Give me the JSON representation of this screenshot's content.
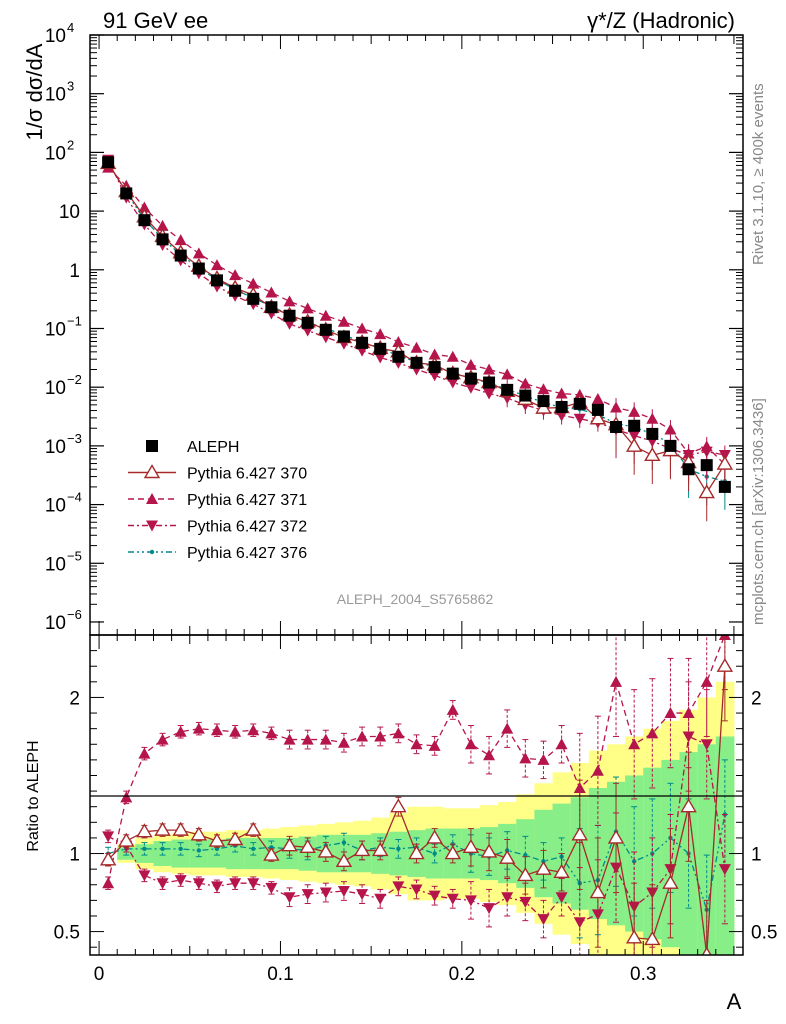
{
  "header": {
    "left": "91 GeV ee",
    "right": "γ*/Z (Hadronic)"
  },
  "side_labels": {
    "rivet": "Rivet 3.1.10, ≥ 400k events",
    "mcplots": "mcplots.cern.ch [arXiv:1306.3436]"
  },
  "watermark": "ALEPH_2004_S5765862",
  "colors": {
    "data": "#000000",
    "p370": "#a52a2a",
    "p371": "#b5154b",
    "p372": "#b5154b",
    "p376": "#008b8b",
    "band_yellow": "#ffff88",
    "band_green": "#88ee88"
  },
  "chart_data": [
    {
      "type": "scatter",
      "title": "",
      "xlabel": "A",
      "ylabel": "1/σ dσ/dA",
      "yscale": "log",
      "xlim": [
        -0.005,
        0.355
      ],
      "ylim": [
        6e-07,
        10000
      ],
      "ytick_labels": [
        {
          "value": 10000,
          "label": "10",
          "exp": "4"
        },
        {
          "value": 1000,
          "label": "10",
          "exp": "3"
        },
        {
          "value": 100,
          "label": "10",
          "exp": "2"
        },
        {
          "value": 10,
          "label": "10",
          "exp": ""
        },
        {
          "value": 1,
          "label": "1",
          "exp": ""
        },
        {
          "value": 0.1,
          "label": "10",
          "exp": "−1"
        },
        {
          "value": 0.01,
          "label": "10",
          "exp": "−2"
        },
        {
          "value": 0.001,
          "label": "10",
          "exp": "−3"
        },
        {
          "value": 0.0001,
          "label": "10",
          "exp": "−4"
        },
        {
          "value": 1e-05,
          "label": "10",
          "exp": "−5"
        },
        {
          "value": 1e-06,
          "label": "10",
          "exp": "−6"
        }
      ],
      "legend_position": "bottom-left",
      "x": [
        0.005,
        0.015,
        0.025,
        0.035,
        0.045,
        0.055,
        0.065,
        0.075,
        0.085,
        0.095,
        0.105,
        0.115,
        0.125,
        0.135,
        0.145,
        0.155,
        0.165,
        0.175,
        0.185,
        0.195,
        0.205,
        0.215,
        0.225,
        0.235,
        0.245,
        0.255,
        0.265,
        0.275,
        0.285,
        0.295,
        0.305,
        0.315,
        0.325,
        0.335,
        0.345
      ],
      "series": [
        {
          "name": "ALEPH",
          "marker": "square",
          "values": [
            68,
            20,
            7.0,
            3.3,
            1.75,
            1.05,
            0.66,
            0.44,
            0.32,
            0.23,
            0.165,
            0.125,
            0.095,
            0.073,
            0.057,
            0.045,
            0.033,
            0.026,
            0.022,
            0.017,
            0.014,
            0.012,
            0.009,
            0.0072,
            0.0058,
            0.0046,
            0.0052,
            0.0041,
            0.0021,
            0.0022,
            0.0016,
            0.001,
            0.0004,
            0.00047,
            0.0002
          ]
        },
        {
          "name": "Pythia 6.427 370",
          "marker": "triangle-open",
          "values": [
            65,
            21.5,
            8.0,
            3.7,
            1.95,
            1.15,
            0.71,
            0.49,
            0.37,
            0.23,
            0.17,
            0.13,
            0.095,
            0.07,
            0.058,
            0.046,
            0.04,
            0.026,
            0.024,
            0.017,
            0.0145,
            0.012,
            0.0085,
            0.0062,
            0.0044,
            0.0045,
            0.0055,
            0.0029,
            0.0023,
            0.00099,
            0.00069,
            0.00083,
            0.00052,
            0.00016,
            0.00049
          ]
        },
        {
          "name": "Pythia 6.427 371",
          "marker": "triangle-up",
          "values": [
            55,
            27,
            11.5,
            5.6,
            3.2,
            1.9,
            1.2,
            0.81,
            0.58,
            0.41,
            0.29,
            0.22,
            0.165,
            0.13,
            0.1,
            0.08,
            0.059,
            0.047,
            0.036,
            0.033,
            0.024,
            0.02,
            0.0165,
            0.0115,
            0.0092,
            0.0078,
            0.0074,
            0.0063,
            0.0045,
            0.0038,
            0.0029,
            0.0019,
            0.00074,
            0.00098,
            0.00048
          ]
        },
        {
          "name": "Pythia 6.427 372",
          "marker": "triangle-down",
          "values": [
            75,
            17,
            5.9,
            2.65,
            1.45,
            0.87,
            0.52,
            0.36,
            0.26,
            0.18,
            0.12,
            0.092,
            0.071,
            0.055,
            0.042,
            0.032,
            0.026,
            0.02,
            0.016,
            0.012,
            0.0098,
            0.0078,
            0.0065,
            0.005,
            0.004,
            0.0033,
            0.0029,
            0.0025,
            0.0019,
            0.0015,
            0.0012,
            0.0009,
            0.0007,
            0.0008,
            0.0007
          ]
        },
        {
          "name": "Pythia 6.427 376",
          "marker": "dot",
          "values": [
            68,
            20.5,
            7.2,
            3.4,
            1.8,
            1.07,
            0.68,
            0.46,
            0.33,
            0.24,
            0.17,
            0.128,
            0.1,
            0.078,
            0.058,
            0.047,
            0.034,
            0.027,
            0.022,
            0.018,
            0.014,
            0.0118,
            0.0092,
            0.0071,
            0.0055,
            0.0045,
            0.0042,
            0.0034,
            0.0024,
            0.0021,
            0.0016,
            0.0011,
            0.0004,
            0.0003,
            0.00025
          ]
        }
      ]
    },
    {
      "type": "scatter",
      "title": "",
      "xlabel": "A",
      "ylabel": "Ratio to ALEPH",
      "ylim": [
        0.35,
        2.4
      ],
      "yticks": [
        0.5,
        1,
        2
      ],
      "ytick_labels": [
        "0.5",
        "1",
        "2"
      ],
      "xticks": [
        0,
        0.1,
        0.2,
        0.3
      ],
      "xtick_labels": [
        "0",
        "0.1",
        "0.2",
        "0.3"
      ],
      "x": [
        0.005,
        0.015,
        0.025,
        0.035,
        0.045,
        0.055,
        0.065,
        0.075,
        0.085,
        0.095,
        0.105,
        0.115,
        0.125,
        0.135,
        0.145,
        0.155,
        0.165,
        0.175,
        0.185,
        0.195,
        0.205,
        0.215,
        0.225,
        0.235,
        0.245,
        0.255,
        0.265,
        0.275,
        0.285,
        0.295,
        0.305,
        0.315,
        0.325,
        0.335,
        0.345
      ],
      "bands": {
        "yellow_half_width": [
          0.02,
          0.06,
          0.1,
          0.12,
          0.13,
          0.14,
          0.14,
          0.15,
          0.15,
          0.16,
          0.17,
          0.18,
          0.19,
          0.2,
          0.21,
          0.23,
          0.26,
          0.3,
          0.3,
          0.29,
          0.29,
          0.31,
          0.33,
          0.38,
          0.45,
          0.52,
          0.58,
          0.66,
          0.7,
          0.75,
          0.8,
          0.85,
          0.92,
          1.0,
          1.1
        ],
        "green_half_width": [
          0.01,
          0.04,
          0.06,
          0.08,
          0.09,
          0.09,
          0.09,
          0.1,
          0.1,
          0.1,
          0.1,
          0.11,
          0.12,
          0.12,
          0.12,
          0.13,
          0.14,
          0.15,
          0.16,
          0.16,
          0.16,
          0.17,
          0.19,
          0.22,
          0.28,
          0.32,
          0.36,
          0.42,
          0.46,
          0.5,
          0.55,
          0.6,
          0.65,
          0.7,
          0.75
        ]
      },
      "series": [
        {
          "name": "Pythia 6.427 370",
          "marker": "triangle-open",
          "values": [
            0.96,
            1.08,
            1.14,
            1.15,
            1.15,
            1.12,
            1.08,
            1.09,
            1.15,
            0.99,
            1.05,
            1.04,
            1.01,
            0.95,
            1.02,
            1.02,
            1.3,
            1.0,
            1.1,
            1.0,
            1.04,
            1.01,
            0.97,
            0.86,
            0.9,
            0.88,
            1.12,
            0.75,
            1.1,
            0.46,
            0.45,
            0.81,
            1.3,
            0.35,
            2.2
          ]
        },
        {
          "name": "Pythia 6.427 371",
          "marker": "triangle-up",
          "values": [
            0.81,
            1.36,
            1.64,
            1.73,
            1.78,
            1.8,
            1.79,
            1.78,
            1.79,
            1.77,
            1.73,
            1.73,
            1.73,
            1.71,
            1.75,
            1.75,
            1.77,
            1.7,
            1.69,
            1.92,
            1.7,
            1.63,
            1.8,
            1.61,
            1.6,
            1.7,
            1.42,
            1.53,
            2.1,
            1.7,
            1.77,
            1.9,
            1.9,
            2.1,
            2.4
          ]
        },
        {
          "name": "Pythia 6.427 372",
          "marker": "triangle-down",
          "values": [
            1.11,
            1.05,
            0.86,
            0.81,
            0.83,
            0.81,
            0.79,
            0.81,
            0.81,
            0.78,
            0.72,
            0.74,
            0.75,
            0.76,
            0.74,
            0.71,
            0.79,
            0.77,
            0.73,
            0.71,
            0.7,
            0.65,
            0.72,
            0.69,
            0.58,
            0.72,
            0.56,
            0.61,
            0.91,
            0.66,
            0.75,
            0.9,
            1.75,
            1.7,
            0.9
          ]
        },
        {
          "name": "Pythia 6.427 376",
          "marker": "dot",
          "values": [
            1.0,
            1.03,
            1.03,
            1.03,
            1.03,
            1.02,
            1.03,
            1.05,
            1.03,
            1.04,
            1.03,
            1.02,
            1.05,
            1.07,
            1.02,
            1.04,
            1.03,
            1.04,
            1.0,
            1.06,
            1.0,
            0.98,
            1.02,
            0.99,
            0.95,
            0.98,
            0.81,
            0.83,
            1.14,
            0.95,
            1.0,
            1.1,
            1.0,
            0.64,
            1.25
          ]
        }
      ]
    }
  ]
}
